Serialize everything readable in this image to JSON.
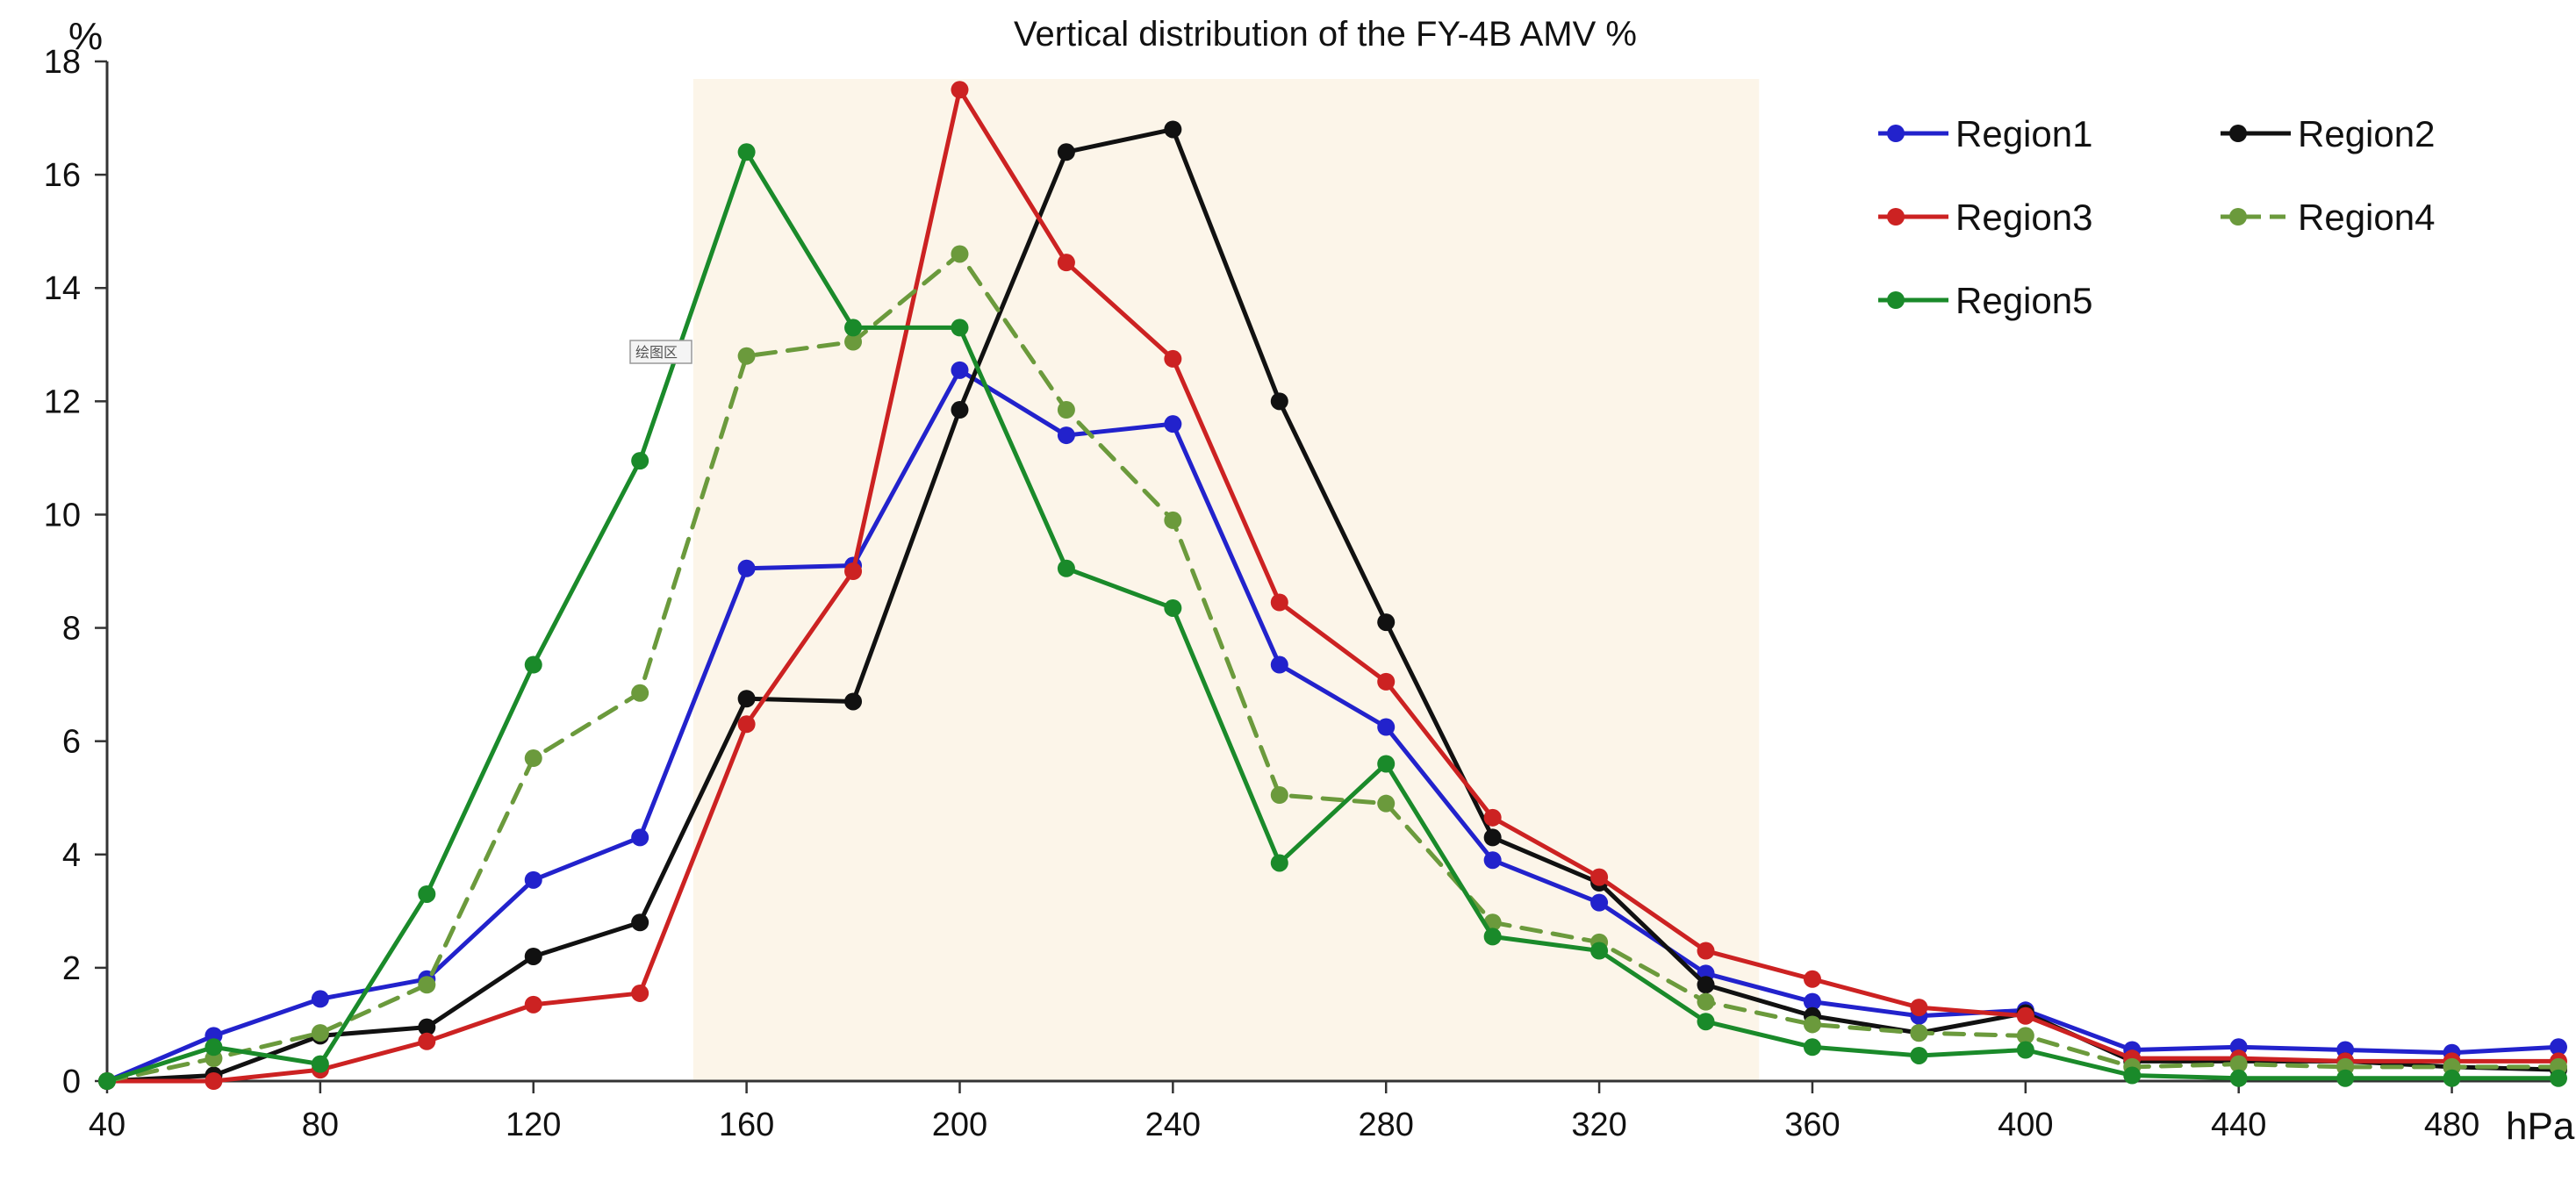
{
  "chart_data": {
    "type": "line",
    "title": "Vertical distribution of the FY-4B AMV  %",
    "ylabel": "%",
    "xlabel": "hPa",
    "x": [
      40,
      60,
      80,
      100,
      120,
      140,
      160,
      180,
      200,
      220,
      240,
      260,
      280,
      300,
      320,
      340,
      360,
      380,
      400,
      420,
      440,
      460,
      480,
      500
    ],
    "x_ticks": [
      40,
      80,
      120,
      160,
      200,
      240,
      280,
      320,
      360,
      400,
      440,
      480
    ],
    "x_tick_labels": [
      "40",
      "80",
      "120",
      "160",
      "200",
      "240",
      "280",
      "320",
      "360",
      "400",
      "440",
      "480"
    ],
    "y_ticks": [
      0,
      2,
      4,
      6,
      8,
      10,
      12,
      14,
      16,
      18
    ],
    "y_tick_labels": [
      "0",
      "2",
      "4",
      "6",
      "8",
      "10",
      "12",
      "14",
      "16",
      "18"
    ],
    "xlim": [
      40,
      500
    ],
    "ylim": [
      0,
      18
    ],
    "highlight_band": {
      "x_range": [
        150,
        350
      ],
      "color": "#fcf5e9"
    },
    "tooltip_label": "绘图区",
    "legend_position": "top-right",
    "series": [
      {
        "name": "Region1",
        "color": "#2222cc",
        "dashed": false,
        "values": [
          0,
          0.8,
          1.45,
          1.8,
          3.55,
          4.3,
          9.05,
          9.1,
          12.55,
          11.4,
          11.6,
          7.35,
          6.25,
          3.9,
          3.15,
          1.9,
          1.4,
          1.15,
          1.25,
          0.55,
          0.6,
          0.55,
          0.5,
          0.6
        ]
      },
      {
        "name": "Region2",
        "color": "#111111",
        "dashed": false,
        "values": [
          0,
          0.1,
          0.8,
          0.95,
          2.2,
          2.8,
          6.75,
          6.7,
          11.85,
          16.4,
          16.8,
          12.0,
          8.1,
          4.3,
          3.5,
          1.7,
          1.15,
          0.85,
          1.2,
          0.35,
          0.35,
          0.35,
          0.25,
          0.2
        ]
      },
      {
        "name": "Region3",
        "color": "#cc2222",
        "dashed": false,
        "values": [
          0,
          0.0,
          0.2,
          0.7,
          1.35,
          1.55,
          6.3,
          9.0,
          17.5,
          14.45,
          12.75,
          8.45,
          7.05,
          4.65,
          3.6,
          2.3,
          1.8,
          1.3,
          1.15,
          0.4,
          0.4,
          0.35,
          0.35,
          0.35
        ]
      },
      {
        "name": "Region4",
        "color": "#6b9a3c",
        "dashed": true,
        "values": [
          0,
          0.4,
          0.85,
          1.7,
          5.7,
          6.85,
          12.8,
          13.05,
          14.6,
          11.85,
          9.9,
          5.05,
          4.9,
          2.8,
          2.45,
          1.4,
          1.0,
          0.85,
          0.8,
          0.25,
          0.3,
          0.25,
          0.25,
          0.25
        ]
      },
      {
        "name": "Region5",
        "color": "#1a8a2a",
        "dashed": false,
        "values": [
          0,
          0.6,
          0.3,
          3.3,
          7.35,
          10.95,
          16.4,
          13.3,
          13.3,
          9.05,
          8.35,
          3.85,
          5.6,
          2.55,
          2.3,
          1.05,
          0.6,
          0.45,
          0.55,
          0.1,
          0.05,
          0.05,
          0.05,
          0.05
        ]
      }
    ]
  }
}
